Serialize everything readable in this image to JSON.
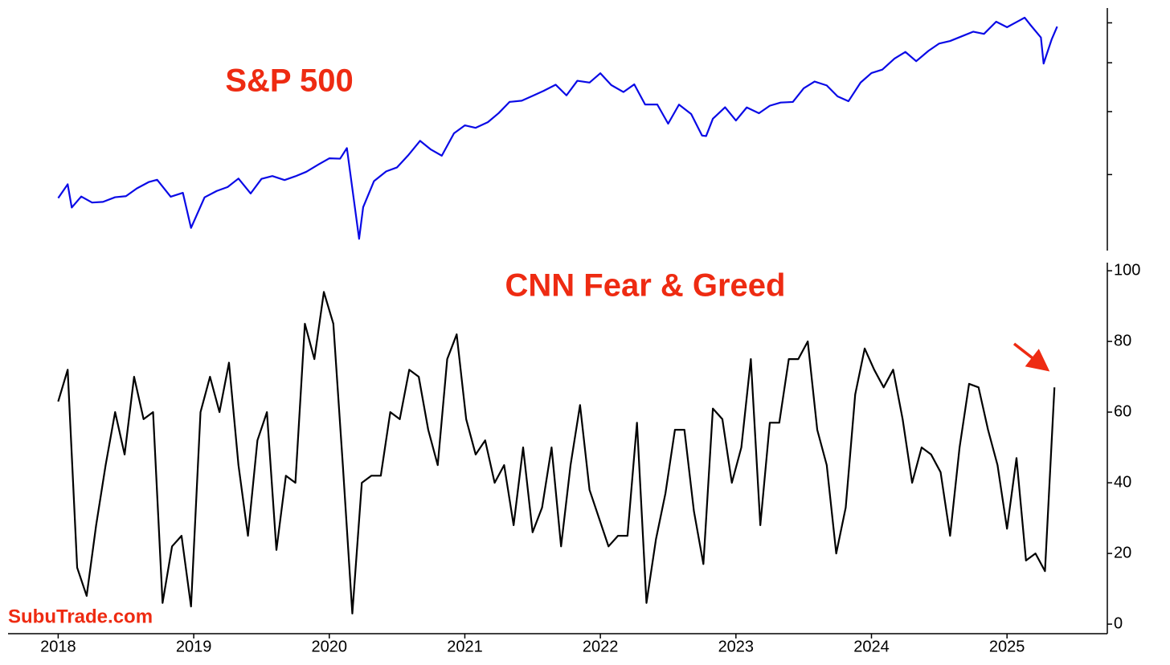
{
  "chart_data": [
    {
      "type": "line",
      "title": "S&P 500",
      "color": "#0a0ae6",
      "log_scale": true,
      "ytick_labels": false,
      "xlim": [
        2017.63,
        2025.74
      ],
      "ylim": [
        2120,
        6420
      ],
      "yticks": [
        3000,
        4000,
        5000,
        6000
      ],
      "x": [
        2018.0,
        2018.07,
        2018.1,
        2018.17,
        2018.25,
        2018.33,
        2018.42,
        2018.5,
        2018.58,
        2018.67,
        2018.73,
        2018.83,
        2018.92,
        2018.98,
        2019.08,
        2019.17,
        2019.25,
        2019.33,
        2019.42,
        2019.5,
        2019.58,
        2019.67,
        2019.75,
        2019.83,
        2019.92,
        2020.0,
        2020.08,
        2020.13,
        2020.22,
        2020.25,
        2020.33,
        2020.42,
        2020.5,
        2020.58,
        2020.67,
        2020.75,
        2020.83,
        2020.92,
        2021.0,
        2021.08,
        2021.17,
        2021.25,
        2021.33,
        2021.42,
        2021.5,
        2021.58,
        2021.67,
        2021.75,
        2021.83,
        2021.92,
        2022.0,
        2022.08,
        2022.17,
        2022.25,
        2022.33,
        2022.42,
        2022.5,
        2022.58,
        2022.67,
        2022.75,
        2022.78,
        2022.83,
        2022.92,
        2023.0,
        2023.08,
        2023.17,
        2023.25,
        2023.33,
        2023.42,
        2023.5,
        2023.58,
        2023.67,
        2023.75,
        2023.83,
        2023.92,
        2024.0,
        2024.08,
        2024.17,
        2024.25,
        2024.33,
        2024.42,
        2024.5,
        2024.58,
        2024.67,
        2024.75,
        2024.83,
        2024.92,
        2025.0,
        2025.08,
        2025.13,
        2025.17,
        2025.25,
        2025.27,
        2025.33,
        2025.37
      ],
      "values": [
        2695,
        2870,
        2581,
        2714,
        2640,
        2648,
        2705,
        2718,
        2816,
        2901,
        2930,
        2711,
        2760,
        2351,
        2704,
        2784,
        2834,
        2946,
        2752,
        2942,
        2980,
        2926,
        2977,
        3038,
        3141,
        3231,
        3226,
        3386,
        2237,
        2585,
        2912,
        3044,
        3100,
        3271,
        3500,
        3363,
        3270,
        3622,
        3756,
        3714,
        3811,
        3973,
        4181,
        4204,
        4298,
        4395,
        4523,
        4308,
        4605,
        4567,
        4766,
        4516,
        4374,
        4530,
        4132,
        4132,
        3785,
        4130,
        3955,
        3586,
        3577,
        3872,
        4080,
        3840,
        4077,
        3970,
        4109,
        4169,
        4180,
        4450,
        4589,
        4508,
        4288,
        4194,
        4568,
        4770,
        4846,
        5096,
        5254,
        5036,
        5278,
        5460,
        5522,
        5648,
        5762,
        5705,
        6032,
        5882,
        6041,
        6144,
        5955,
        5612,
        4982,
        5569,
        5900
      ]
    },
    {
      "type": "line",
      "title": "CNN Fear & Greed",
      "color": "#000000",
      "log_scale": false,
      "ytick_labels": true,
      "xlim": [
        2017.63,
        2025.74
      ],
      "ylim": [
        -2.7,
        102.3
      ],
      "yticks": [
        0,
        20,
        40,
        60,
        80,
        100
      ],
      "xticks": [
        2018,
        2019,
        2020,
        2021,
        2022,
        2023,
        2024,
        2025
      ],
      "x": [
        2018.0,
        2018.07,
        2018.14,
        2018.21,
        2018.28,
        2018.35,
        2018.42,
        2018.49,
        2018.56,
        2018.63,
        2018.7,
        2018.77,
        2018.84,
        2018.91,
        2018.98,
        2019.05,
        2019.12,
        2019.19,
        2019.26,
        2019.33,
        2019.4,
        2019.47,
        2019.54,
        2019.61,
        2019.68,
        2019.75,
        2019.82,
        2019.89,
        2019.96,
        2020.03,
        2020.1,
        2020.17,
        2020.24,
        2020.31,
        2020.38,
        2020.45,
        2020.52,
        2020.59,
        2020.66,
        2020.73,
        2020.8,
        2020.87,
        2020.94,
        2021.01,
        2021.08,
        2021.15,
        2021.22,
        2021.29,
        2021.36,
        2021.43,
        2021.5,
        2021.57,
        2021.64,
        2021.71,
        2021.78,
        2021.85,
        2021.92,
        2021.99,
        2022.06,
        2022.13,
        2022.2,
        2022.27,
        2022.34,
        2022.41,
        2022.48,
        2022.55,
        2022.62,
        2022.69,
        2022.76,
        2022.83,
        2022.9,
        2022.97,
        2023.04,
        2023.11,
        2023.18,
        2023.25,
        2023.32,
        2023.39,
        2023.46,
        2023.53,
        2023.6,
        2023.67,
        2023.74,
        2023.81,
        2023.88,
        2023.95,
        2024.02,
        2024.09,
        2024.16,
        2024.23,
        2024.3,
        2024.37,
        2024.44,
        2024.51,
        2024.58,
        2024.65,
        2024.72,
        2024.79,
        2024.86,
        2024.93,
        2025.0,
        2025.07,
        2025.14,
        2025.21,
        2025.28,
        2025.35
      ],
      "values": [
        63,
        72,
        16,
        8,
        28,
        45,
        60,
        48,
        70,
        58,
        60,
        6,
        22,
        25,
        5,
        60,
        70,
        60,
        74,
        45,
        25,
        52,
        60,
        21,
        42,
        40,
        85,
        75,
        94,
        85,
        45,
        3,
        40,
        42,
        42,
        60,
        58,
        72,
        70,
        55,
        45,
        75,
        82,
        58,
        48,
        52,
        40,
        45,
        28,
        50,
        26,
        33,
        50,
        22,
        45,
        62,
        38,
        30,
        22,
        25,
        25,
        57,
        6,
        24,
        37,
        55,
        55,
        32,
        17,
        61,
        58,
        40,
        50,
        75,
        28,
        57,
        57,
        75,
        75,
        80,
        55,
        45,
        20,
        33,
        65,
        78,
        72,
        67,
        72,
        58,
        40,
        50,
        48,
        43,
        25,
        50,
        68,
        67,
        55,
        45,
        27,
        47,
        18,
        20,
        15,
        67
      ]
    }
  ],
  "watermark": "SubuTrade.com"
}
